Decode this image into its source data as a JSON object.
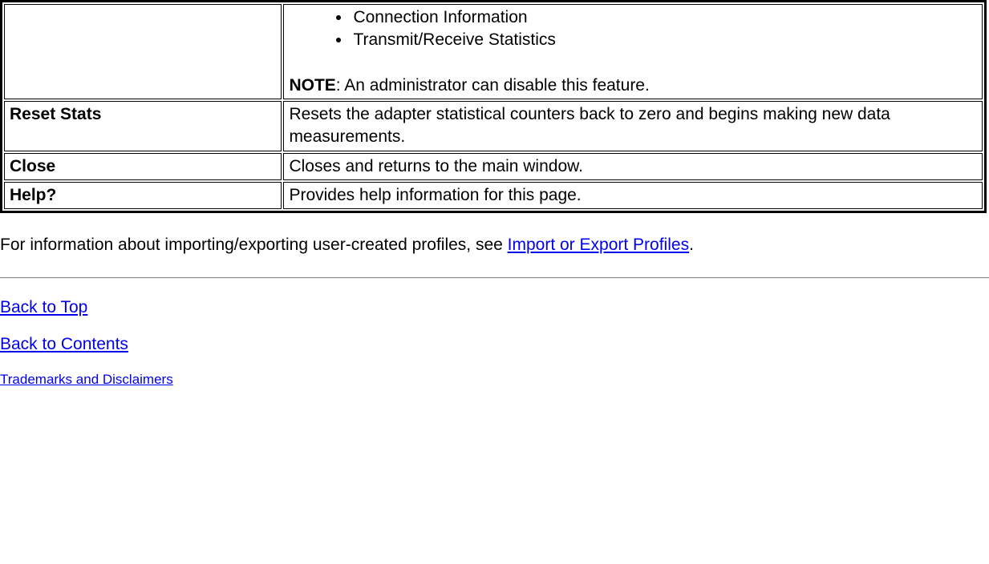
{
  "table": {
    "rows": [
      {
        "left": "",
        "right_list": [
          "Connection Information",
          "Transmit/Receive Statistics"
        ],
        "note_label": "NOTE",
        "note_text": ": An administrator can disable this feature."
      },
      {
        "left": "Reset Stats",
        "right": "Resets the adapter statistical counters back to zero and begins making new data measurements."
      },
      {
        "left": "Close",
        "right": "Closes and returns to the main window."
      },
      {
        "left": "Help?",
        "right": "Provides help information for this page."
      }
    ]
  },
  "body": {
    "intro_text": "For information about importing/exporting user-created profiles, see ",
    "intro_link": "Import or Export Profiles",
    "intro_trail": "."
  },
  "links": {
    "back_to_top": "Back to Top",
    "back_to_contents": "Back to Contents",
    "trademarks": "Trademarks and Disclaimers"
  },
  "colors": {
    "link": "#0000ee",
    "text": "#000000",
    "background": "#ffffff",
    "border": "#000000"
  }
}
